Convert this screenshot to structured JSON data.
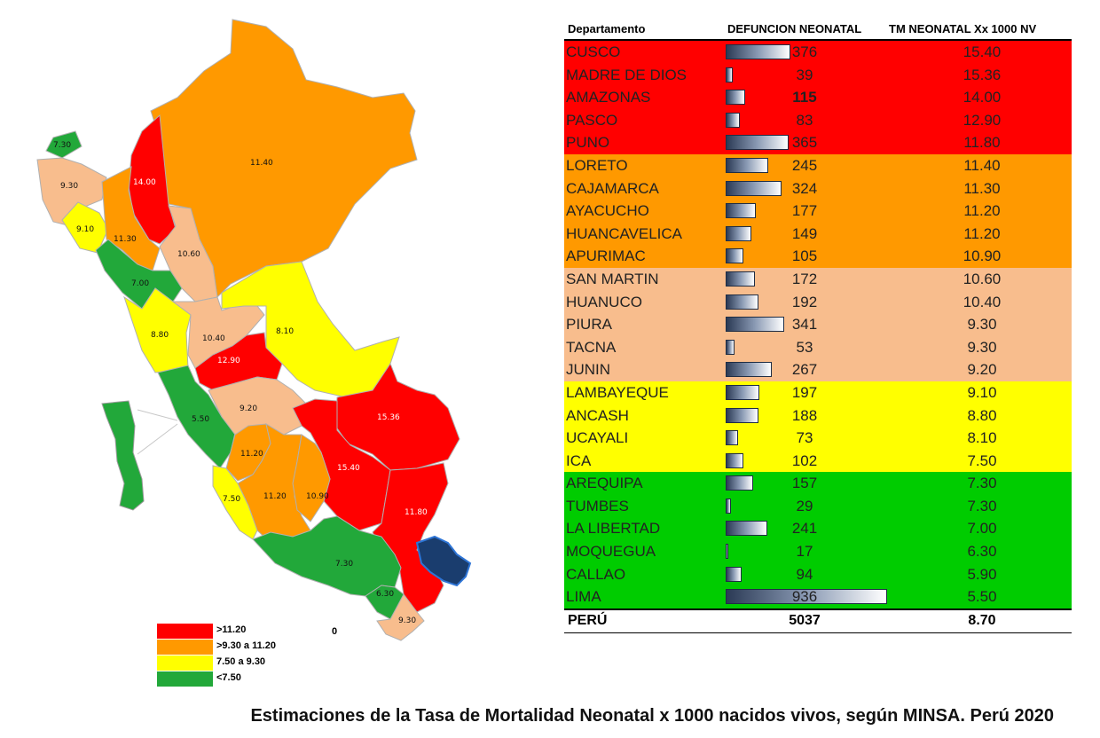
{
  "colors": {
    "red": "#ff0000",
    "orange": "#ff9900",
    "peach": "#f8bd8d",
    "yellow": "#ffff00",
    "green": "#00cc00",
    "map_green": "#22a83a"
  },
  "map": {
    "region_labels": [
      "7.30",
      "9.30",
      "9.10",
      "14.00",
      "11.30",
      "11.40",
      "10.60",
      "7.00",
      "8.80",
      "10.40",
      "8.10",
      "12.90",
      "9.20",
      "15.36",
      "5.50",
      "11.20",
      "15.40",
      "11.20",
      "10.90",
      "7.50",
      "11.80",
      "7.30",
      "6.30",
      "9.30"
    ]
  },
  "legend": {
    "items": [
      {
        "label": ">11.20",
        "color": "#ff0000"
      },
      {
        "label": ">9.30 a 11.20",
        "color": "#ff9900"
      },
      {
        "label": "7.50 a  9.30",
        "color": "#ffff00"
      },
      {
        "label": "<7.50",
        "color": "#22a83a"
      }
    ],
    "extra": "0"
  },
  "table": {
    "headers": {
      "dept": "Departamento",
      "def": "DEFUNCION  NEONATAL",
      "tm": "TM NEONATAL Xx 1000 NV"
    },
    "rows": [
      {
        "name": "CUSCO",
        "def": "376",
        "tm": "15.40",
        "band": "red"
      },
      {
        "name": "MADRE DE DIOS",
        "def": "39",
        "tm": "15.36",
        "band": "red"
      },
      {
        "name": "AMAZONAS",
        "def": "115",
        "tm": "14.00",
        "band": "red"
      },
      {
        "name": "PASCO",
        "def": "83",
        "tm": "12.90",
        "band": "red"
      },
      {
        "name": "PUNO",
        "def": "365",
        "tm": "11.80",
        "band": "red"
      },
      {
        "name": "LORETO",
        "def": "245",
        "tm": "11.40",
        "band": "orange"
      },
      {
        "name": "CAJAMARCA",
        "def": "324",
        "tm": "11.30",
        "band": "orange"
      },
      {
        "name": "AYACUCHO",
        "def": "177",
        "tm": "11.20",
        "band": "orange"
      },
      {
        "name": "HUANCAVELICA",
        "def": "149",
        "tm": "11.20",
        "band": "orange"
      },
      {
        "name": "APURIMAC",
        "def": "105",
        "tm": "10.90",
        "band": "orange"
      },
      {
        "name": "SAN MARTIN",
        "def": "172",
        "tm": "10.60",
        "band": "peach"
      },
      {
        "name": "HUANUCO",
        "def": "192",
        "tm": "10.40",
        "band": "peach"
      },
      {
        "name": "PIURA",
        "def": "341",
        "tm": "9.30",
        "band": "peach"
      },
      {
        "name": "TACNA",
        "def": "53",
        "tm": "9.30",
        "band": "peach"
      },
      {
        "name": "JUNIN",
        "def": "267",
        "tm": "9.20",
        "band": "peach"
      },
      {
        "name": "LAMBAYEQUE",
        "def": "197",
        "tm": "9.10",
        "band": "yellow"
      },
      {
        "name": "ANCASH",
        "def": "188",
        "tm": "8.80",
        "band": "yellow"
      },
      {
        "name": "UCAYALI",
        "def": "73",
        "tm": "8.10",
        "band": "yellow"
      },
      {
        "name": "ICA",
        "def": "102",
        "tm": "7.50",
        "band": "yellow"
      },
      {
        "name": "AREQUIPA",
        "def": "157",
        "tm": "7.30",
        "band": "green"
      },
      {
        "name": "TUMBES",
        "def": "29",
        "tm": "7.30",
        "band": "green"
      },
      {
        "name": "LA LIBERTAD",
        "def": "241",
        "tm": "7.00",
        "band": "green"
      },
      {
        "name": "MOQUEGUA",
        "def": "17",
        "tm": "6.30",
        "band": "green"
      },
      {
        "name": "CALLAO",
        "def": "94",
        "tm": "5.90",
        "band": "green"
      },
      {
        "name": "LIMA",
        "def": "936",
        "tm": "5.50",
        "band": "green"
      }
    ],
    "total": {
      "name": "PERÚ",
      "def": "5037",
      "tm": "8.70"
    }
  },
  "caption": "Estimaciones de la Tasa de Mortalidad Neonatal x 1000 nacidos vivos, según MINSA. Perú 2020"
}
